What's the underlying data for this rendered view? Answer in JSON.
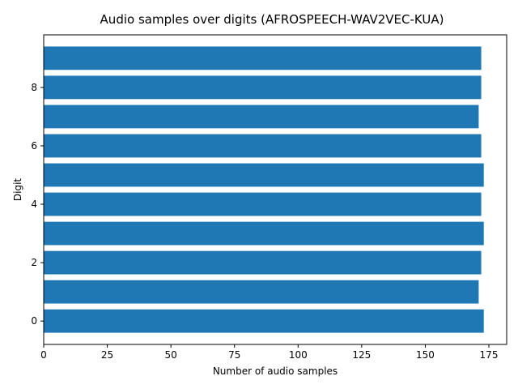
{
  "chart_data": {
    "type": "bar",
    "orientation": "horizontal",
    "title": "Audio samples over digits (AFROSPEECH-WAV2VEC-KUA)",
    "xlabel": "Number of audio samples",
    "ylabel": "Digit",
    "xlim": [
      0,
      182
    ],
    "ylim": [
      -0.8,
      9.8
    ],
    "x_ticks": [
      0,
      25,
      50,
      75,
      100,
      125,
      150,
      175
    ],
    "y_ticks": [
      0,
      2,
      4,
      6,
      8
    ],
    "grid": false,
    "legend": "none",
    "bar_color": "#1f77b4",
    "categories": [
      0,
      1,
      2,
      3,
      4,
      5,
      6,
      7,
      8,
      9
    ],
    "values": [
      173,
      171,
      172,
      173,
      172,
      173,
      172,
      171,
      172,
      172
    ]
  }
}
